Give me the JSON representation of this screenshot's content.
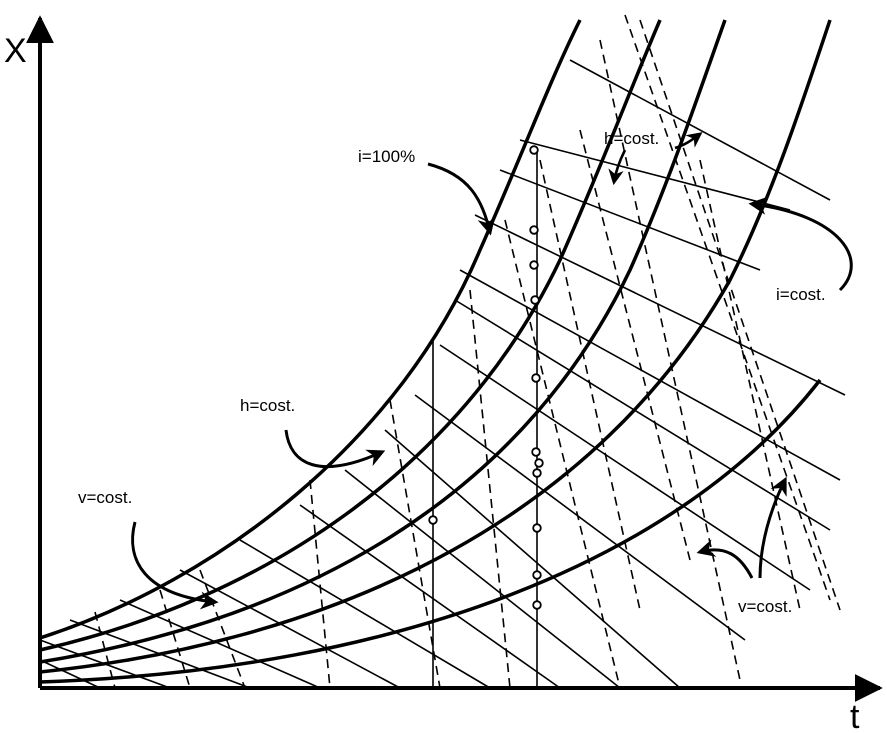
{
  "axes": {
    "x_label": "t",
    "y_label": "X"
  },
  "annotations": {
    "i_100": "i=100%",
    "h_cost_top": "h=cost.",
    "h_cost_left": "h=cost.",
    "i_cost": "i=cost.",
    "v_cost_left": "v=cost.",
    "v_cost_right": "v=cost."
  },
  "colors": {
    "ink": "#000000",
    "background": "#ffffff"
  }
}
